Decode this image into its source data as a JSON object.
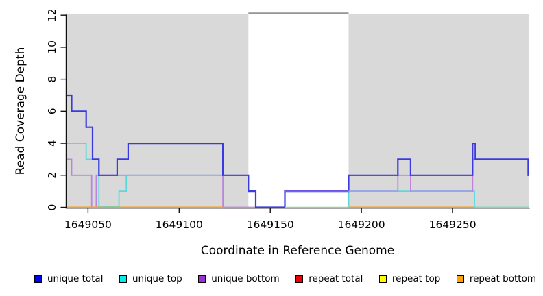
{
  "chart_data": {
    "type": "line",
    "title": "",
    "xlabel": "Coordinate in Reference Genome",
    "ylabel": "Read Coverage Depth",
    "xlim": [
      1649038,
      1649292
    ],
    "ylim": [
      0,
      12
    ],
    "x_ticks": [
      1649050,
      1649100,
      1649150,
      1649200,
      1649250
    ],
    "y_ticks": [
      0,
      2,
      4,
      6,
      8,
      10,
      12
    ],
    "grid": false,
    "colors": {
      "shade": "#d9d9d9",
      "gap_top_line": "#949494",
      "axis": "#111111"
    },
    "shaded_regions": [
      [
        1649038,
        1649138
      ],
      [
        1649193,
        1649292
      ]
    ],
    "unshaded_gap": [
      1649138,
      1649193
    ],
    "gap_top_line": {
      "x1": 1649138,
      "x2": 1649193,
      "depth": 12.1
    },
    "series": [
      {
        "name": "unique top",
        "color": "#5ad9dc",
        "width": 1.8,
        "offset": 0,
        "segments": [
          [
            [
              1649038,
              4
            ],
            [
              1649049,
              3
            ],
            [
              1649056,
              0
            ],
            [
              1649067,
              1
            ],
            [
              1649071,
              2
            ],
            [
              1649124,
              2
            ]
          ],
          [
            [
              1649193,
              0
            ],
            [
              1649193,
              1
            ],
            [
              1649262,
              0
            ],
            [
              1649292,
              0
            ]
          ]
        ]
      },
      {
        "name": "unique bottom",
        "color": "#bc84e0",
        "width": 1.8,
        "offset": 0,
        "segments": [
          [
            [
              1649038,
              3
            ],
            [
              1649041,
              2
            ],
            [
              1649052,
              0
            ],
            [
              1649054.5,
              2
            ],
            [
              1649124,
              0
            ],
            [
              1649158,
              1
            ],
            [
              1649220,
              2
            ],
            [
              1649227,
              1
            ],
            [
              1649261,
              3
            ],
            [
              1649292,
              3
            ]
          ]
        ]
      },
      {
        "name": "overlap top+bottom at 2",
        "color": "#a4aeee",
        "width": 1.8,
        "offset": 0,
        "segments": [
          [
            [
              1649071,
              2
            ],
            [
              1649124,
              2
            ]
          ]
        ]
      },
      {
        "name": "repeat total",
        "color": "#ee8d95",
        "width": 1.6,
        "offset": 0.9,
        "segments": [
          [
            [
              1649124,
              0
            ],
            [
              1649148,
              0
            ]
          ]
        ]
      },
      {
        "name": "unique total",
        "color": "#3a3ae0",
        "width": 2.2,
        "offset": 0,
        "segments": [
          [
            [
              1649038,
              7
            ],
            [
              1649041,
              6
            ],
            [
              1649049,
              5
            ],
            [
              1649052.5,
              3
            ],
            [
              1649056,
              2
            ],
            [
              1649066,
              3
            ],
            [
              1649072,
              4
            ],
            [
              1649124,
              2
            ],
            [
              1649138,
              1
            ],
            [
              1649142,
              0
            ],
            [
              1649158,
              1
            ],
            [
              1649193,
              2
            ],
            [
              1649220,
              3
            ],
            [
              1649227,
              2
            ],
            [
              1649261,
              4
            ],
            [
              1649262.5,
              3
            ],
            [
              1649291.5,
              2
            ],
            [
              1649292,
              2
            ]
          ]
        ]
      },
      {
        "name": "overlap bottom+total at 1",
        "color": "#7d5ce8",
        "width": 1.8,
        "offset": 0,
        "segments": [
          [
            [
              1649158,
              1
            ],
            [
              1649193,
              1
            ]
          ]
        ]
      },
      {
        "name": "overlap top+bottom at 1",
        "color": "#98a6ec",
        "width": 1.8,
        "offset": 0,
        "segments": [
          [
            [
              1649193,
              1
            ],
            [
              1649220,
              1
            ]
          ],
          [
            [
              1649227,
              1
            ],
            [
              1649261,
              1
            ]
          ]
        ]
      },
      {
        "name": "repeat bottom",
        "color": "#ff9d14",
        "width": 2,
        "offset": 0,
        "segments": [
          [
            [
              1649038,
              0
            ],
            [
              1649124,
              0
            ]
          ],
          [
            [
              1649193,
              0
            ],
            [
              1649262,
              0
            ]
          ]
        ]
      },
      {
        "name": "repeat top over unique top at 0",
        "color": "#8fd6a2",
        "width": 1.6,
        "offset": 0,
        "segments": [
          [
            [
              1649158,
              0
            ],
            [
              1649193,
              0
            ]
          ],
          [
            [
              1649263,
              0
            ],
            [
              1649292,
              0
            ]
          ]
        ]
      },
      {
        "name": "unique top zero sliver",
        "color": "#68d7c6",
        "width": 1.6,
        "offset": -1.5,
        "segments": [
          [
            [
              1649056,
              0
            ],
            [
              1649067,
              0
            ]
          ]
        ]
      }
    ]
  },
  "legend": {
    "items": [
      {
        "label": "unique total",
        "color": "#0000EE"
      },
      {
        "label": "unique top",
        "color": "#00EEEE"
      },
      {
        "label": "unique bottom",
        "color": "#9B30D0"
      },
      {
        "label": "repeat total",
        "color": "#EE0000"
      },
      {
        "label": "repeat top",
        "color": "#FFFF00"
      },
      {
        "label": "repeat bottom",
        "color": "#FFA500"
      }
    ]
  }
}
